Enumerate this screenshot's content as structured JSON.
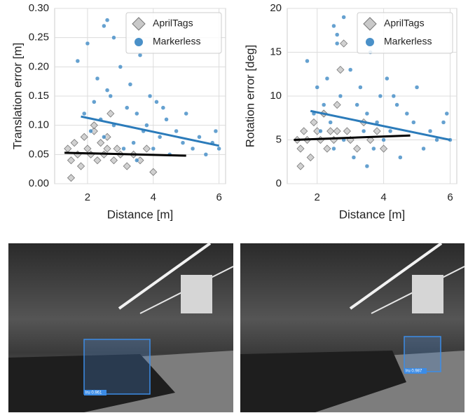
{
  "chart_data": [
    {
      "type": "scatter",
      "xlabel": "Distance [m]",
      "ylabel": "Translation error [m]",
      "xlim": [
        1.0,
        6.2
      ],
      "xticks": [
        2,
        4,
        6
      ],
      "ylim": [
        0,
        0.3
      ],
      "yticks": [
        {
          "value": 0,
          "label": "0.00"
        },
        {
          "value": 0.05,
          "label": "0.05"
        },
        {
          "value": 0.1,
          "label": "0.10"
        },
        {
          "value": 0.15,
          "label": "0.15"
        },
        {
          "value": 0.2,
          "label": "0.20"
        },
        {
          "value": 0.25,
          "label": "0.25"
        },
        {
          "value": 0.3,
          "label": "0.30"
        }
      ],
      "grid": true,
      "legend": "upper right",
      "series": [
        {
          "name": "AprilTags",
          "color": "#c9c9c9",
          "marker": "diamond",
          "line_color": "#000000",
          "x": [
            1.4,
            1.5,
            1.6,
            1.7,
            1.8,
            1.9,
            2.0,
            2.1,
            2.2,
            2.3,
            2.4,
            2.5,
            2.6,
            2.7,
            2.8,
            2.9,
            3.0,
            3.2,
            3.4,
            3.6,
            3.8,
            4.0,
            1.5,
            2.2,
            2.6
          ],
          "y": [
            0.06,
            0.04,
            0.07,
            0.05,
            0.03,
            0.08,
            0.06,
            0.05,
            0.09,
            0.04,
            0.07,
            0.05,
            0.06,
            0.12,
            0.04,
            0.06,
            0.05,
            0.03,
            0.05,
            0.04,
            0.06,
            0.02,
            0.01,
            0.1,
            0.08
          ],
          "fit": {
            "x": [
              1.3,
              5.0
            ],
            "y": [
              0.053,
              0.048
            ]
          }
        },
        {
          "name": "Markerless",
          "color": "#4a90c8",
          "marker": "circle",
          "line_color": "#2b7bba",
          "x": [
            1.7,
            1.9,
            2.0,
            2.1,
            2.2,
            2.3,
            2.4,
            2.5,
            2.5,
            2.6,
            2.7,
            2.8,
            3.0,
            3.1,
            3.2,
            3.3,
            3.4,
            3.5,
            3.6,
            3.7,
            3.8,
            3.9,
            4.0,
            4.1,
            4.2,
            4.4,
            4.5,
            4.7,
            4.9,
            5.0,
            5.2,
            5.4,
            5.6,
            5.8,
            5.9,
            6.0,
            2.6,
            3.5,
            2.8,
            4.3
          ],
          "y": [
            0.21,
            0.12,
            0.24,
            0.09,
            0.14,
            0.18,
            0.11,
            0.27,
            0.08,
            0.28,
            0.15,
            0.1,
            0.2,
            0.06,
            0.13,
            0.17,
            0.07,
            0.12,
            0.22,
            0.09,
            0.1,
            0.15,
            0.06,
            0.14,
            0.08,
            0.11,
            0.05,
            0.09,
            0.07,
            0.12,
            0.06,
            0.08,
            0.05,
            0.07,
            0.09,
            0.06,
            0.16,
            0.04,
            0.25,
            0.13
          ],
          "fit": {
            "x": [
              1.8,
              6.0
            ],
            "y": [
              0.115,
              0.065
            ]
          }
        }
      ]
    },
    {
      "type": "scatter",
      "xlabel": "Distance [m]",
      "ylabel": "Rotation error [deg]",
      "xlim": [
        1.1,
        6.2
      ],
      "xticks": [
        2,
        4,
        6
      ],
      "ylim": [
        0,
        20
      ],
      "yticks": [
        0,
        5,
        10,
        15,
        20
      ],
      "grid": true,
      "legend": "upper right",
      "series": [
        {
          "name": "AprilTags",
          "color": "#c9c9c9",
          "marker": "diamond",
          "line_color": "#000000",
          "x": [
            1.4,
            1.5,
            1.6,
            1.7,
            1.8,
            1.9,
            2.0,
            2.1,
            2.2,
            2.3,
            2.4,
            2.5,
            2.6,
            2.7,
            2.8,
            2.9,
            3.0,
            3.2,
            3.4,
            3.6,
            3.8,
            4.0,
            1.5,
            2.2,
            2.6
          ],
          "y": [
            5,
            4,
            6,
            5,
            3,
            7,
            6,
            5,
            8,
            4,
            6,
            5,
            9,
            13,
            16,
            6,
            5,
            4,
            7,
            5,
            6,
            4,
            2,
            8,
            6
          ],
          "fit": {
            "x": [
              1.3,
              4.8
            ],
            "y": [
              5.0,
              5.5
            ]
          }
        },
        {
          "name": "Markerless",
          "color": "#4a90c8",
          "marker": "circle",
          "line_color": "#2b7bba",
          "x": [
            1.7,
            1.9,
            2.0,
            2.1,
            2.2,
            2.3,
            2.4,
            2.5,
            2.5,
            2.6,
            2.7,
            2.8,
            3.0,
            3.1,
            3.2,
            3.3,
            3.4,
            3.5,
            3.6,
            3.7,
            3.8,
            3.9,
            4.0,
            4.1,
            4.2,
            4.4,
            4.5,
            4.7,
            4.9,
            5.0,
            5.2,
            5.4,
            5.6,
            5.8,
            5.9,
            6.0,
            2.6,
            3.5,
            2.8,
            4.3
          ],
          "y": [
            14,
            8,
            11,
            6,
            9,
            12,
            7,
            18,
            4,
            16,
            10,
            5,
            13,
            3,
            9,
            11,
            6,
            8,
            15,
            4,
            7,
            10,
            5,
            12,
            6,
            9,
            3,
            8,
            7,
            11,
            4,
            6,
            5,
            7,
            8,
            5,
            17,
            2,
            19,
            10
          ],
          "fit": {
            "x": [
              1.8,
              6.0
            ],
            "y": [
              8.3,
              5.0
            ]
          }
        }
      ]
    }
  ],
  "images": [
    {
      "label": "lru 0.961"
    },
    {
      "label": "lru 0.987"
    }
  ]
}
